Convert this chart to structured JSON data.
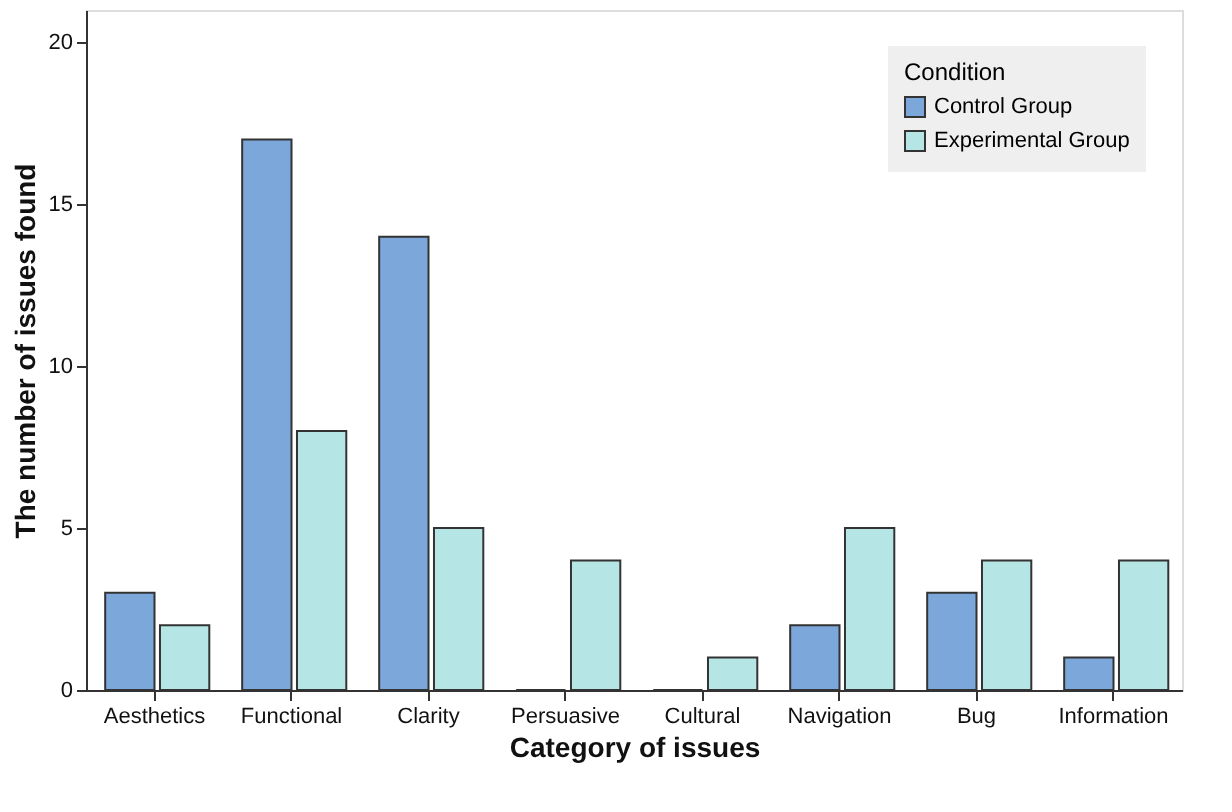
{
  "chart_data": {
    "type": "bar",
    "xlabel": "Category of issues",
    "ylabel": "The number of issues found",
    "legend_title": "Condition",
    "legend": "top right",
    "grid": false,
    "categories": [
      "Aesthetics",
      "Functional",
      "Clarity",
      "Persuasive",
      "Cultural",
      "Navigation",
      "Bug",
      "Information"
    ],
    "series": [
      {
        "name": "Control Group",
        "color": "#7ba7da",
        "values": [
          3,
          17,
          14,
          0,
          0,
          2,
          3,
          1
        ]
      },
      {
        "name": "Experimental Group",
        "color": "#b5e5e5",
        "values": [
          2,
          8,
          5,
          4,
          1,
          5,
          4,
          4
        ]
      }
    ],
    "ylim": [
      0,
      21
    ],
    "yticks": [
      0,
      5,
      10,
      15,
      20
    ]
  }
}
